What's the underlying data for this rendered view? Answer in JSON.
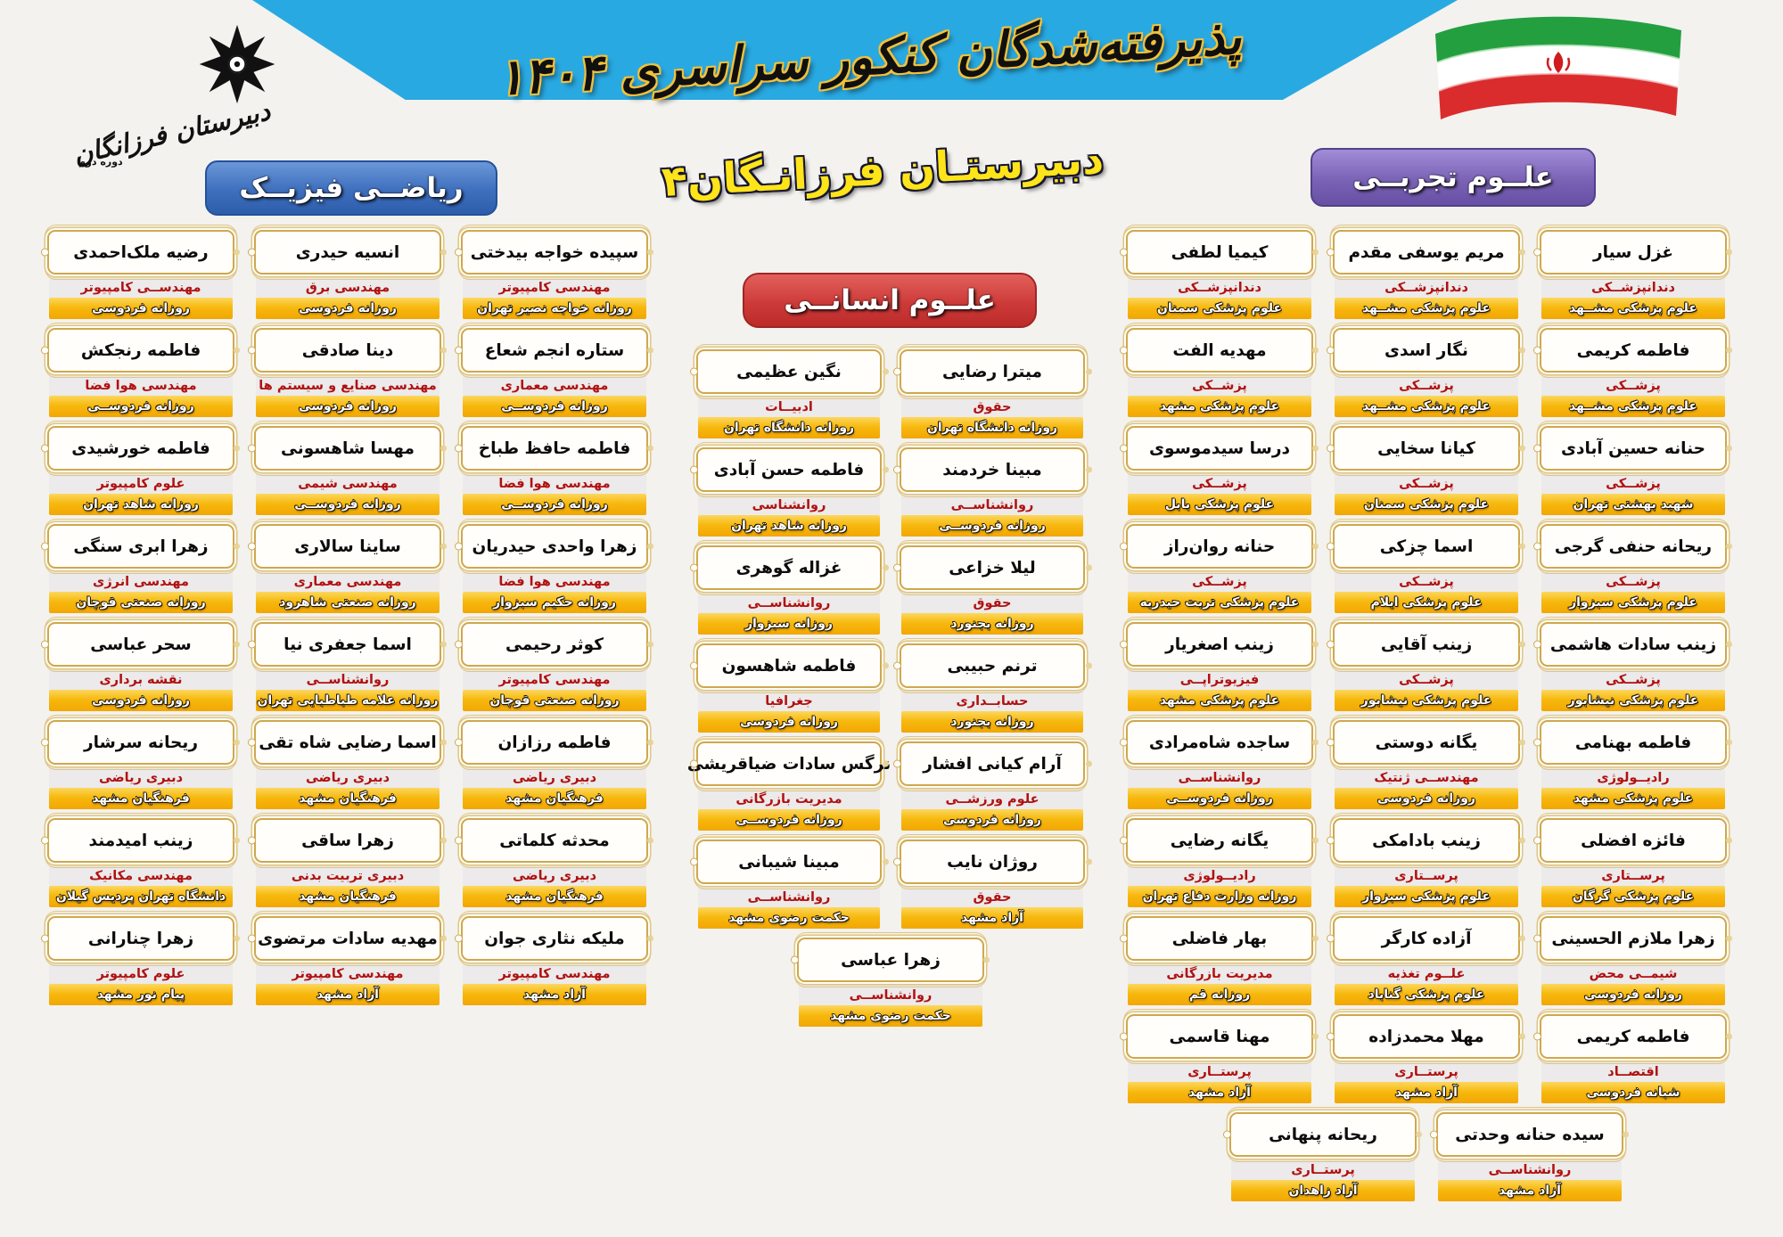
{
  "page": {
    "title": "پذیرفته‌شدگان کنکور سراسری ۱۴۰۴",
    "school_name": "دبیرستـان فرزانـگان۴",
    "logo": {
      "line1": "دبیرستان فرزانگان",
      "line2": "دوره دوم",
      "icon": "sampad-star-icon"
    },
    "flag_icon": "iran-flag-icon",
    "colors": {
      "banner_blue": "#29a9e2",
      "math_header": "#3e6fbe",
      "experimental_header": "#7a63b5",
      "humanities_header": "#cd3b39",
      "school_name_yellow": "#ffe419",
      "card_gold": "#f5b212",
      "field_red": "#b11111",
      "flag_green": "#239f40",
      "flag_red": "#da2c2c"
    }
  },
  "sections": {
    "math": {
      "header": "ریاضــی فیزیــک",
      "cards": [
        {
          "name": "سپیده خواجه بیدختی",
          "field": "مهندسی کامپیوتر",
          "university": "روزانه خواجه نصیر تهران"
        },
        {
          "name": "انسیه حیدری",
          "field": "مهندسی برق",
          "university": "روزانه فردوسی"
        },
        {
          "name": "رضیه ملک‌احمدی",
          "field": "مهندســی کامپیوتر",
          "university": "روزانه فردوسی"
        },
        {
          "name": "ستاره انجم شعاع",
          "field": "مهندسی معماری",
          "university": "روزانه فردوســی"
        },
        {
          "name": "دینا صادقی",
          "field": "مهندسی صنایع و سیستم ها",
          "university": "روزانه فردوسی"
        },
        {
          "name": "فاطمه رنجکش",
          "field": "مهندسی هوا فضا",
          "university": "روزانه فردوســی"
        },
        {
          "name": "فاطمه حافظ طباخ",
          "field": "مهندسی هوا فضا",
          "university": "روزانه فردوســی"
        },
        {
          "name": "مهسا شاهسونی",
          "field": "مهندسی شیمی",
          "university": "روزانه فردوســی"
        },
        {
          "name": "فاطمه خورشیدی",
          "field": "علوم کامپیوتر",
          "university": "روزانه شاهد تهران"
        },
        {
          "name": "زهرا واحدی حیدریان",
          "field": "مهندسی هوا فضا",
          "university": "روزانه حکیم سبزوار"
        },
        {
          "name": "ساینا سالاری",
          "field": "مهندسی معماری",
          "university": "روزانه صنعتی شاهرود"
        },
        {
          "name": "زهرا ابری سنگی",
          "field": "مهندسی انرژی",
          "university": "روزانه صنعتی قوچان"
        },
        {
          "name": "کوثر رحیمی",
          "field": "مهندسی کامپیوتر",
          "university": "روزانه صنعتی قوچان"
        },
        {
          "name": "اسما جعفری نیا",
          "field": "روانشناســی",
          "university": "روزانه علامه طباطبایی تهران"
        },
        {
          "name": "سحر عباسی",
          "field": "نقشه برداری",
          "university": "روزانه فردوسی"
        },
        {
          "name": "فاطمه رزازان",
          "field": "دبیری ریاضی",
          "university": "فرهنگیان مشهد"
        },
        {
          "name": "اسما رضایی شاه تقی",
          "field": "دبیری ریاضی",
          "university": "فرهنگیان مشهد"
        },
        {
          "name": "ریحانه سرشار",
          "field": "دبیری ریاضی",
          "university": "فرهنگیان مشهد"
        },
        {
          "name": "محدثه کلماتی",
          "field": "دبیری ریاضی",
          "university": "فرهنگیان مشهد"
        },
        {
          "name": "زهرا ساقی",
          "field": "دبیری تربیت بدنی",
          "university": "فرهنگیان مشهد"
        },
        {
          "name": "زینب امیدمند",
          "field": "مهندسی مکانیک",
          "university": "دانشگاه تهران پردیس گیلان"
        },
        {
          "name": "ملیکه نثاری جوان",
          "field": "مهندسی کامپیوتر",
          "university": "آزاد مشهد"
        },
        {
          "name": "مهدیه سادات مرتضوی",
          "field": "مهندسی کامپیوتر",
          "university": "آزاد مشهد"
        },
        {
          "name": "زهرا چنارانی",
          "field": "علوم کامپیوتر",
          "university": "پیام نور مشهد"
        }
      ],
      "bottom_cards": []
    },
    "humanities": {
      "header": "علــوم انسانــی",
      "cards": [
        {
          "name": "میترا رضایی",
          "field": "حقوق",
          "university": "روزانه دانشگاه تهران"
        },
        {
          "name": "نگین عظیمی",
          "field": "ادبیــات",
          "university": "روزانه دانشگاه تهران"
        },
        {
          "name": "مبینا خردمند",
          "field": "روانشناســی",
          "university": "روزانه فردوســی"
        },
        {
          "name": "فاطمه حسن آبادی",
          "field": "روانشناسی",
          "university": "روزانه شاهد تهران"
        },
        {
          "name": "لیلا خزاعی",
          "field": "حقوق",
          "university": "روزانه بجنورد"
        },
        {
          "name": "غزاله گوهری",
          "field": "روانشناســی",
          "university": "روزانه سبزوار"
        },
        {
          "name": "ترنم حبیبی",
          "field": "حسابــداری",
          "university": "روزانه بجنورد"
        },
        {
          "name": "فاطمه شاهسون",
          "field": "جغرافیا",
          "university": "روزانه فردوسی"
        },
        {
          "name": "آرام کیانی افشار",
          "field": "علوم ورزشــی",
          "university": "روزانه فردوسی"
        },
        {
          "name": "نرگس سادات ضیاقریشی",
          "field": "مدیریت بازرگانی",
          "university": "روزانه فردوســی"
        },
        {
          "name": "روژان نایب",
          "field": "حقوق",
          "university": "آزاد مشهد"
        },
        {
          "name": "مبینا شیبانی",
          "field": "روانشناســی",
          "university": "حکمت رضوی مشهد"
        }
      ],
      "bottom_cards": [
        {
          "name": "زهرا عباسی",
          "field": "روانشناســی",
          "university": "حکمت رضوی مشهد"
        }
      ]
    },
    "experimental": {
      "header": "علــوم تجربــی",
      "cards": [
        {
          "name": "غزل سیار",
          "field": "دندانپزشــکی",
          "university": "علوم پزشکی مشــهد"
        },
        {
          "name": "مریم یوسفی مقدم",
          "field": "دندانپزشــکی",
          "university": "علوم پزشکی مشــهد"
        },
        {
          "name": "کیمیا لطفی",
          "field": "دندانپزشــکی",
          "university": "علوم پزشکی سمنان"
        },
        {
          "name": "فاطمه کریمی",
          "field": "پزشــکی",
          "university": "علوم پزشکی مشــهد"
        },
        {
          "name": "نگار اسدی",
          "field": "پزشــکی",
          "university": "علوم پزشکی مشــهد"
        },
        {
          "name": "مهدیه الفت",
          "field": "پزشــکی",
          "university": "علوم پزشکی مشهد"
        },
        {
          "name": "حنانه حسین آبادی",
          "field": "پزشــکی",
          "university": "شهید بهشتی تهران"
        },
        {
          "name": "کیانا سخایی",
          "field": "پزشــکی",
          "university": "علوم پزشکی سمنان"
        },
        {
          "name": "درسا سیدموسوی",
          "field": "پزشــکی",
          "university": "علوم پزشکی بابل"
        },
        {
          "name": "ریحانه حنفی گرجی",
          "field": "پزشــکی",
          "university": "علوم پزشکی سبزوار"
        },
        {
          "name": "اسما چزکی",
          "field": "پزشــکی",
          "university": "علوم پزشکی ایلام"
        },
        {
          "name": "حنانه روان‌راز",
          "field": "پزشــکی",
          "university": "علوم پزشکی تربت حیدریه"
        },
        {
          "name": "زینب سادات هاشمی",
          "field": "پزشــکی",
          "university": "علوم پزشکی نیشابور"
        },
        {
          "name": "زینب آقایی",
          "field": "پزشــکی",
          "university": "علوم پزشکی نیشابور"
        },
        {
          "name": "زینب اصغریار",
          "field": "فیزیوتراپــی",
          "university": "علوم پزشکی مشهد"
        },
        {
          "name": "فاطمه بهنامی",
          "field": "رادیــولوژی",
          "university": "علوم پزشکی مشهد"
        },
        {
          "name": "یگانه دوستی",
          "field": "مهندســی ژنتیک",
          "university": "روزانه فردوسی"
        },
        {
          "name": "ساجده شاه‌مرادی",
          "field": "روانشناســی",
          "university": "روزانه فردوســی"
        },
        {
          "name": "فائزه افضلی",
          "field": "پرســتاری",
          "university": "علوم پزشکی گرگان"
        },
        {
          "name": "زینب بادامکی",
          "field": "پرســتاری",
          "university": "علوم پزشکی سبزوار"
        },
        {
          "name": "یگانه رضایی",
          "field": "رادیــولوژی",
          "university": "روزانه وزارت دفاع تهران"
        },
        {
          "name": "زهرا ملازم الحسینی",
          "field": "شیمــی محض",
          "university": "روزانه فردوسی"
        },
        {
          "name": "آزاده کارگر",
          "field": "علــوم تغذیه",
          "university": "علوم پزشکی گناباد"
        },
        {
          "name": "بهار فاضلی",
          "field": "مدیریت بازرگانی",
          "university": "روزانه قم"
        },
        {
          "name": "فاطمه کریمی",
          "field": "اقتصــاد",
          "university": "شبانه فردوسی"
        },
        {
          "name": "مهلا محمدزاده",
          "field": "پرستــاری",
          "university": "آزاد مشهد"
        },
        {
          "name": "مهنا قاسمی",
          "field": "پرستــاری",
          "university": "آزاد مشهد"
        }
      ],
      "bottom_cards": [
        {
          "name": "سیده حنانه وحدتی",
          "field": "روانشناســی",
          "university": "آزاد مشهد"
        },
        {
          "name": "ریحانه پنهانی",
          "field": "پرستــاری",
          "university": "آزاد زاهدان"
        }
      ]
    }
  }
}
